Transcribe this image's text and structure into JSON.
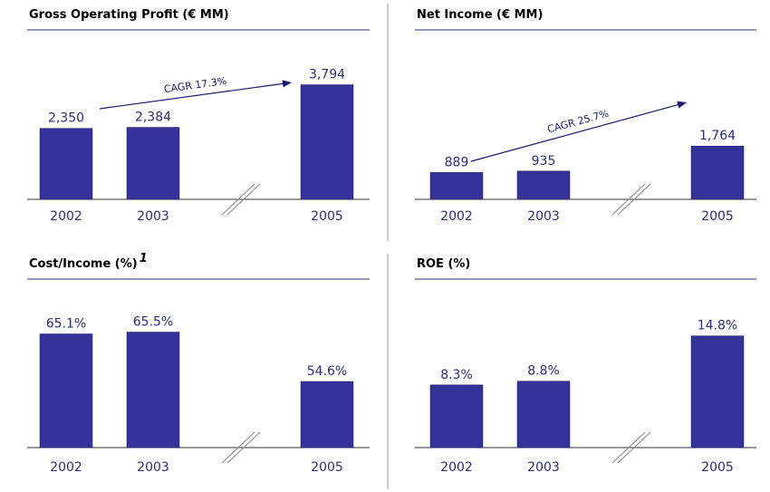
{
  "chart_data": [
    {
      "type": "bar",
      "title": "Gross Operating Profit (€ MM)",
      "categories": [
        "2002",
        "2003",
        null,
        "2005"
      ],
      "values": [
        2350,
        2384,
        null,
        3794
      ],
      "value_labels": [
        "2,350",
        "2,384",
        null,
        "3,794"
      ],
      "color": "#333399",
      "ylim": [
        0,
        4500
      ],
      "annotation": "CAGR 17.3%"
    },
    {
      "type": "bar",
      "title": "Net Income (€ MM)",
      "categories": [
        "2002",
        "2003",
        null,
        "2005"
      ],
      "values": [
        889,
        935,
        null,
        1764
      ],
      "value_labels": [
        "889",
        "935",
        null,
        "1,764"
      ],
      "color": "#333399",
      "ylim": [
        0,
        4500
      ],
      "annotation": "CAGR 25.7%"
    },
    {
      "type": "bar",
      "title": "Cost/Income (%)",
      "title_superscript": "1",
      "categories": [
        "2002",
        "2003",
        null,
        "2005"
      ],
      "values": [
        65.1,
        65.5,
        null,
        54.6
      ],
      "value_labels": [
        "65.1%",
        "65.5%",
        null,
        "54.6%"
      ],
      "color": "#333399",
      "ylim": [
        40,
        70
      ]
    },
    {
      "type": "bar",
      "title": "ROE (%)",
      "categories": [
        "2002",
        "2003",
        null,
        "2005"
      ],
      "values": [
        8.3,
        8.8,
        null,
        14.8
      ],
      "value_labels": [
        "8.3%",
        "8.8%",
        null,
        "14.8%"
      ],
      "color": "#333399",
      "ylim": [
        0,
        18
      ]
    }
  ]
}
